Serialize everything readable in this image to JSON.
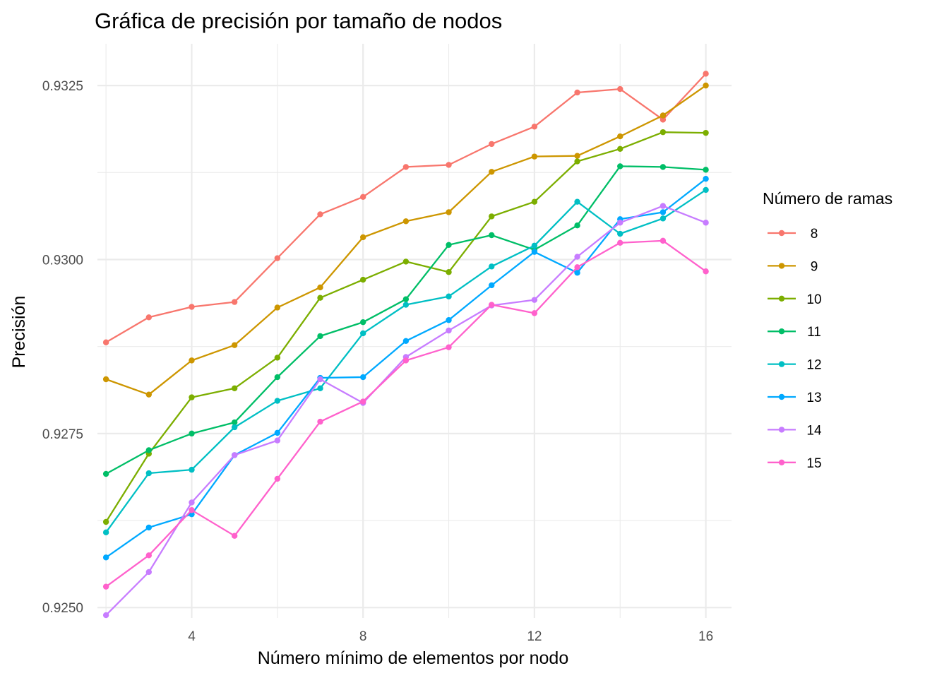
{
  "chart_data": {
    "type": "line",
    "title": "Gráfica de precisión por tamaño de nodos",
    "xlabel": "Número mínimo de elementos por nodo",
    "ylabel": "Precisión",
    "legend_title": "Número de ramas",
    "legend_position": "right",
    "grid": true,
    "x": [
      2,
      3,
      4,
      5,
      6,
      7,
      8,
      9,
      10,
      11,
      12,
      13,
      14,
      15,
      16
    ],
    "xlim": [
      1.8,
      16.6
    ],
    "ylim": [
      0.92485,
      0.9331
    ],
    "x_ticks": [
      4,
      8,
      12,
      16
    ],
    "x_tick_labels": [
      "4",
      "8",
      "12",
      "16"
    ],
    "x_minor_ticks": [
      2,
      6,
      10,
      14
    ],
    "y_ticks": [
      0.925,
      0.9275,
      0.93,
      0.9325
    ],
    "y_tick_labels": [
      "0.9250",
      "0.9275",
      "0.9300",
      "0.9325"
    ],
    "y_minor_ticks": [
      0.92625,
      0.92875,
      0.93125
    ],
    "series": [
      {
        "name": "8",
        "color": "#F8766D",
        "values": [
          0.92881,
          0.92917,
          0.92932,
          0.92939,
          0.93002,
          0.93065,
          0.9309,
          0.93133,
          0.93136,
          0.93166,
          0.93191,
          0.9324,
          0.93245,
          0.93201,
          0.93267
        ]
      },
      {
        "name": "9",
        "color": "#CD9600",
        "values": [
          0.92828,
          0.92806,
          0.92855,
          0.92877,
          0.92931,
          0.9296,
          0.93032,
          0.93055,
          0.93068,
          0.93126,
          0.93148,
          0.93149,
          0.93177,
          0.93207,
          0.9325
        ]
      },
      {
        "name": "10",
        "color": "#7CAE00",
        "values": [
          0.92623,
          0.92721,
          0.92802,
          0.92815,
          0.92859,
          0.92945,
          0.92971,
          0.92997,
          0.92982,
          0.93062,
          0.93083,
          0.93141,
          0.93159,
          0.93183,
          0.93182
        ]
      },
      {
        "name": "11",
        "color": "#00BE67",
        "values": [
          0.92692,
          0.92726,
          0.9275,
          0.92766,
          0.92831,
          0.9289,
          0.9291,
          0.92943,
          0.93021,
          0.93035,
          0.93014,
          0.93049,
          0.93134,
          0.93133,
          0.93129
        ]
      },
      {
        "name": "12",
        "color": "#00BFC4",
        "values": [
          0.92608,
          0.92693,
          0.92698,
          0.92759,
          0.92797,
          0.92815,
          0.92894,
          0.92935,
          0.92947,
          0.9299,
          0.9302,
          0.93083,
          0.93037,
          0.93059,
          0.931
        ]
      },
      {
        "name": "13",
        "color": "#00A9FF",
        "values": [
          0.92572,
          0.92615,
          0.92634,
          0.92719,
          0.92751,
          0.9283,
          0.92831,
          0.92883,
          0.92913,
          0.92963,
          0.93011,
          0.92981,
          0.93058,
          0.93068,
          0.93116
        ]
      },
      {
        "name": "14",
        "color": "#C77CFF",
        "values": [
          0.92489,
          0.92551,
          0.92651,
          0.92719,
          0.9274,
          0.92828,
          0.92794,
          0.9286,
          0.92898,
          0.92934,
          0.92942,
          0.93004,
          0.93053,
          0.93077,
          0.93053
        ]
      },
      {
        "name": "15",
        "color": "#FF61CC",
        "values": [
          0.9253,
          0.92575,
          0.9264,
          0.92603,
          0.92685,
          0.92767,
          0.92796,
          0.92855,
          0.92874,
          0.92935,
          0.92923,
          0.92989,
          0.93024,
          0.93027,
          0.92983
        ]
      }
    ]
  }
}
